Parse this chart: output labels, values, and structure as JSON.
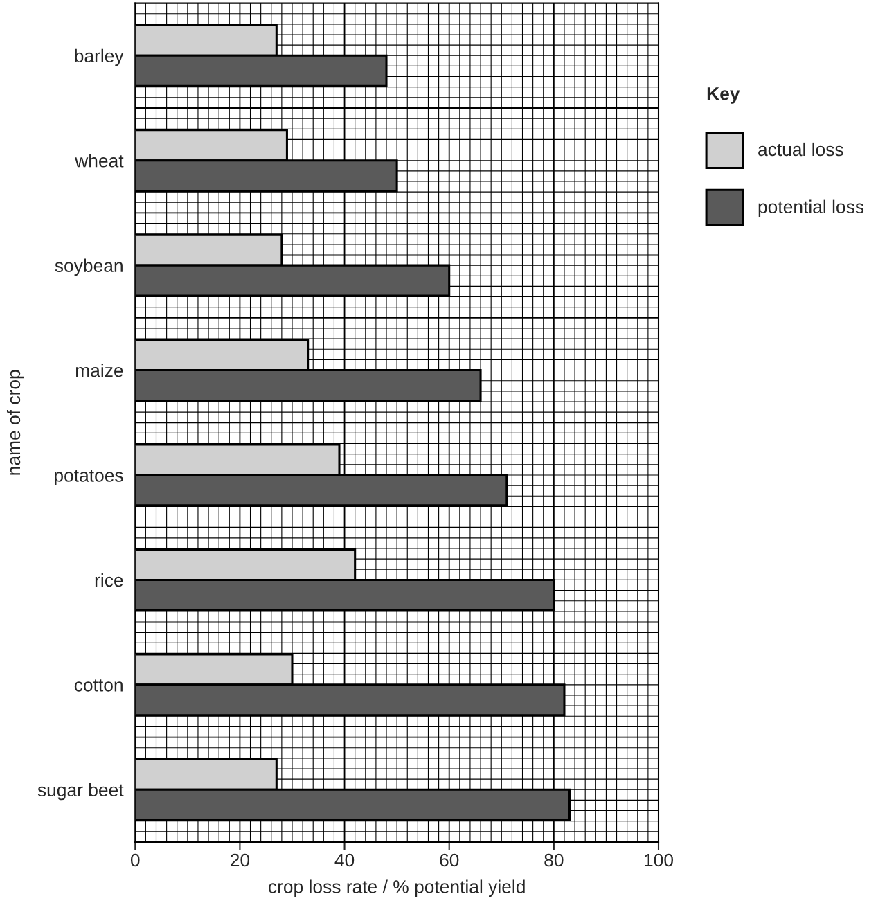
{
  "chart_data": {
    "type": "bar",
    "orientation": "horizontal",
    "xlabel": "crop loss rate / % potential yield",
    "ylabel": "name of crop",
    "legend_title": "Key",
    "legend": "right",
    "categories": [
      "barley",
      "wheat",
      "soybean",
      "maize",
      "potatoes",
      "rice",
      "cotton",
      "sugar beet"
    ],
    "series": [
      {
        "name": "actual loss",
        "color": "#d0d0d0",
        "values": [
          27,
          29,
          28,
          33,
          39,
          42,
          30,
          27
        ]
      },
      {
        "name": "potential loss",
        "color": "#5a5a5a",
        "values": [
          48,
          50,
          60,
          66,
          71,
          80,
          82,
          83
        ]
      }
    ],
    "xlim": [
      0,
      100
    ],
    "xticks": [
      0,
      20,
      40,
      60,
      80,
      100
    ],
    "grid": true
  }
}
